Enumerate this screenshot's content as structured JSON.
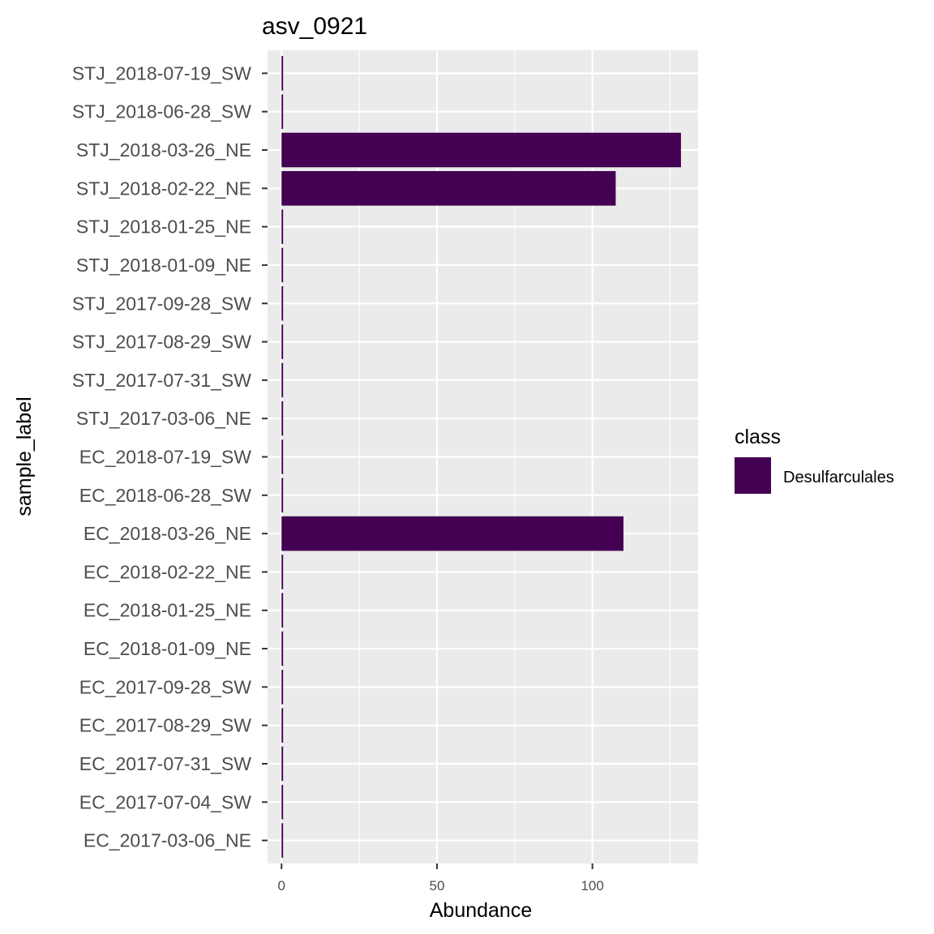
{
  "chart_data": {
    "type": "bar",
    "orientation": "horizontal",
    "title": "asv_0921",
    "xlabel": "Abundance",
    "ylabel": "sample_label",
    "xlim": [
      -4.5,
      134
    ],
    "x_ticks": [
      0,
      50,
      100
    ],
    "grid": true,
    "categories": [
      "EC_2017-03-06_NE",
      "EC_2017-07-04_SW",
      "EC_2017-07-31_SW",
      "EC_2017-08-29_SW",
      "EC_2017-09-28_SW",
      "EC_2018-01-09_NE",
      "EC_2018-01-25_NE",
      "EC_2018-02-22_NE",
      "EC_2018-03-26_NE",
      "EC_2018-06-28_SW",
      "EC_2018-07-19_SW",
      "STJ_2017-03-06_NE",
      "STJ_2017-07-31_SW",
      "STJ_2017-08-29_SW",
      "STJ_2017-09-28_SW",
      "STJ_2018-01-09_NE",
      "STJ_2018-01-25_NE",
      "STJ_2018-02-22_NE",
      "STJ_2018-03-26_NE",
      "STJ_2018-06-28_SW",
      "STJ_2018-07-19_SW"
    ],
    "series": [
      {
        "name": "Desulfarculales",
        "color": "#440154",
        "values": [
          0.5,
          0.5,
          0.5,
          0.5,
          0.5,
          0.5,
          0.5,
          0.5,
          110,
          0.5,
          0.5,
          0.5,
          0.5,
          0.5,
          0.5,
          0.5,
          0.5,
          107.5,
          128.5,
          0.5,
          0.5
        ]
      }
    ],
    "legend": {
      "title": "class",
      "position": "right"
    }
  }
}
